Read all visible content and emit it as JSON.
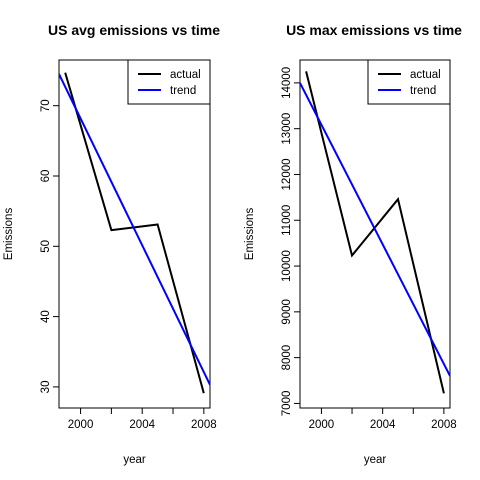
{
  "chart_data": [
    {
      "type": "line",
      "title": "US avg emissions vs time",
      "xlabel": "year",
      "ylabel": "Emissions",
      "xlim": [
        1998.6,
        2008.4
      ],
      "ylim": [
        27.0,
        76.5
      ],
      "x_ticks": [
        2000,
        2004,
        2008
      ],
      "x_tick_labels": [
        "2000",
        "2004",
        "2008"
      ],
      "x_minor_ticks": [
        2002,
        2006
      ],
      "y_ticks": [
        30,
        40,
        50,
        60,
        70
      ],
      "y_tick_labels": [
        "30",
        "40",
        "50",
        "60",
        "70"
      ],
      "legend_position": "top-right",
      "grid": false,
      "series": [
        {
          "name": "actual",
          "color": "#000000",
          "x": [
            1999,
            2002,
            2005,
            2008
          ],
          "y": [
            74.7,
            52.3,
            53.1,
            29.1
          ]
        },
        {
          "name": "trend",
          "color": "#0000ff",
          "x": [
            1998.6,
            2008.4
          ],
          "y": [
            74.5,
            30.3
          ]
        }
      ]
    },
    {
      "type": "line",
      "title": "US max emissions vs time",
      "xlabel": "year",
      "ylabel": "Emissions",
      "xlim": [
        1998.6,
        2008.4
      ],
      "ylim": [
        6900,
        14500
      ],
      "x_ticks": [
        2000,
        2004,
        2008
      ],
      "x_tick_labels": [
        "2000",
        "2004",
        "2008"
      ],
      "x_minor_ticks": [
        2002,
        2006
      ],
      "y_ticks": [
        7000,
        8000,
        9000,
        10000,
        11000,
        12000,
        13000,
        14000
      ],
      "y_tick_labels": [
        "7000",
        "8000",
        "9000",
        "10000",
        "11000",
        "12000",
        "13000",
        "14000"
      ],
      "legend_position": "top-right",
      "grid": false,
      "series": [
        {
          "name": "actual",
          "color": "#000000",
          "x": [
            1999,
            2002,
            2005,
            2008
          ],
          "y": [
            14250,
            10230,
            11460,
            7220
          ]
        },
        {
          "name": "trend",
          "color": "#0000ff",
          "x": [
            1998.6,
            2008.4
          ],
          "y": [
            14000,
            7600
          ]
        }
      ]
    }
  ]
}
